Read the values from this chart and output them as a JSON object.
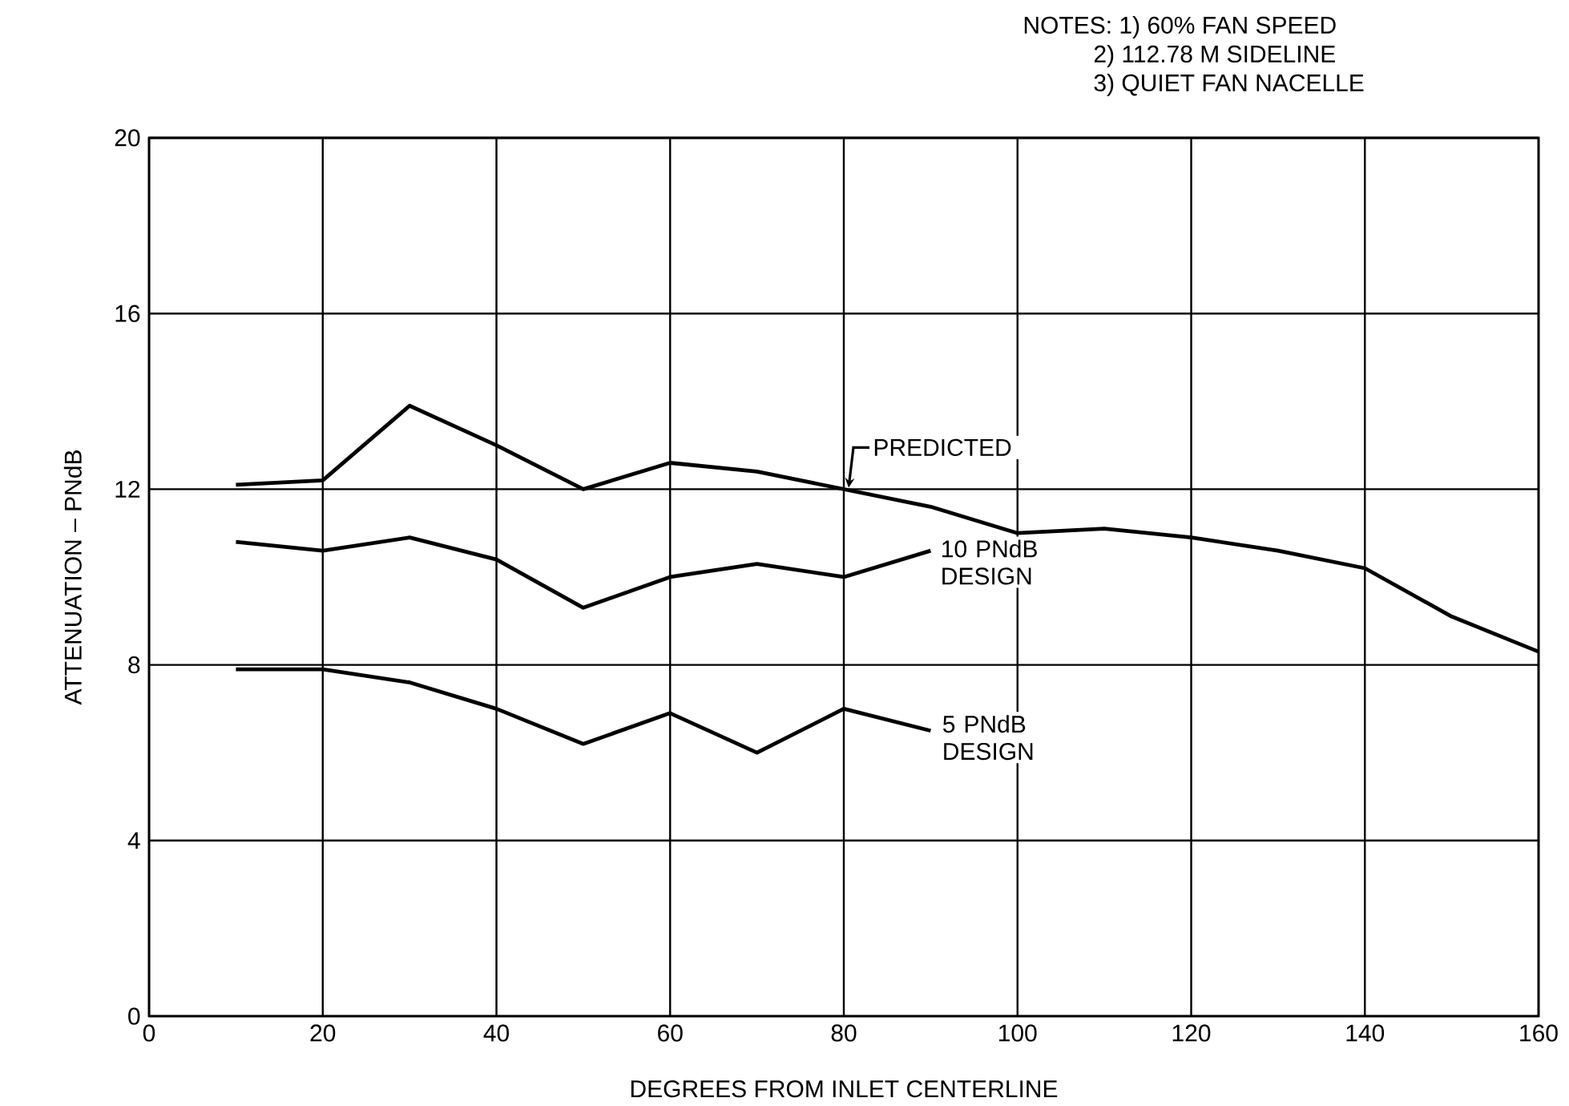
{
  "chart_data": {
    "type": "line",
    "xlabel": "DEGREES FROM INLET CENTERLINE",
    "ylabel": "ATTENUATION – PNdB",
    "xlim": [
      0,
      160
    ],
    "xticks": [
      0,
      20,
      40,
      60,
      80,
      100,
      120,
      140,
      160
    ],
    "ylim": [
      0,
      20
    ],
    "yticks": [
      0,
      4,
      8,
      12,
      16,
      20
    ],
    "grid": true,
    "legend": false,
    "marker": "none",
    "line_style": "solid",
    "series": [
      {
        "name": "PREDICTED",
        "color": "#000000",
        "x": [
          10,
          20,
          30,
          40,
          50,
          60,
          70,
          80,
          90,
          100,
          110,
          120,
          130,
          140,
          150,
          160
        ],
        "values": [
          12.1,
          12.2,
          13.9,
          13.0,
          12.0,
          12.6,
          12.4,
          12.0,
          11.6,
          11.0,
          11.1,
          10.9,
          10.6,
          10.2,
          9.1,
          8.3
        ]
      },
      {
        "name": "10 PNdB DESIGN",
        "color": "#000000",
        "x": [
          10,
          20,
          30,
          40,
          50,
          60,
          70,
          80,
          90
        ],
        "values": [
          10.8,
          10.6,
          10.9,
          10.4,
          9.3,
          10.0,
          10.3,
          10.0,
          10.6
        ]
      },
      {
        "name": "5 PNdB DESIGN",
        "color": "#000000",
        "x": [
          10,
          20,
          30,
          40,
          50,
          60,
          70,
          80,
          90
        ],
        "values": [
          7.9,
          7.9,
          7.6,
          7.0,
          6.2,
          6.9,
          6.0,
          7.0,
          6.5
        ]
      }
    ],
    "annotations": [
      "NOTES: 1) 60% FAN SPEED",
      "2) 112.78 M SIDELINE",
      "3) QUIET FAN NACELLE"
    ]
  }
}
